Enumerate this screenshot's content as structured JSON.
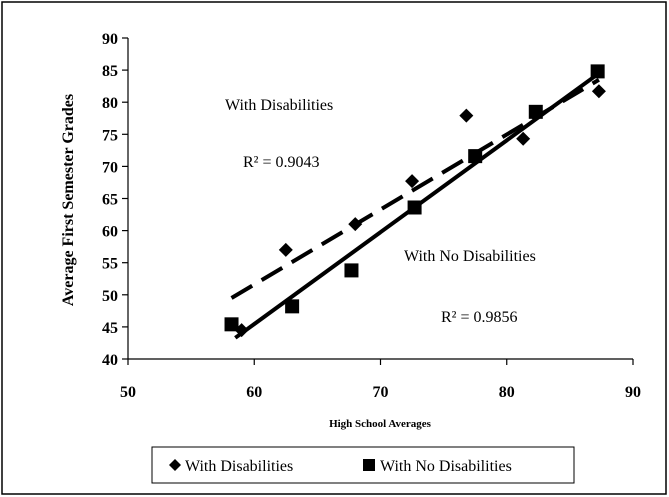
{
  "chart_data": {
    "type": "scatter",
    "xlabel": "High School Averages",
    "ylabel": "Average First Semester Grades",
    "xlim": [
      50,
      90
    ],
    "ylim": [
      40,
      90
    ],
    "x_ticks": [
      "50",
      "60",
      "70",
      "80",
      "90"
    ],
    "y_ticks": [
      "40",
      "45",
      "50",
      "55",
      "60",
      "65",
      "70",
      "75",
      "80",
      "85",
      "90"
    ],
    "grid": false,
    "legend_position": "bottom",
    "series": [
      {
        "name": "With Disabilities",
        "marker": "diamond",
        "color": "#000000",
        "points": [
          {
            "x": 59,
            "y": 44.5
          },
          {
            "x": 62.5,
            "y": 57
          },
          {
            "x": 68,
            "y": 61
          },
          {
            "x": 72.5,
            "y": 67.7
          },
          {
            "x": 76.8,
            "y": 77.9
          },
          {
            "x": 81.3,
            "y": 74.3
          },
          {
            "x": 87.3,
            "y": 81.7
          }
        ],
        "trendline": {
          "style": "dashed",
          "x": [
            58.2,
            87.3
          ],
          "y": [
            49.5,
            83.5
          ]
        },
        "annotation": {
          "label": "With Disabilities",
          "r2": "R² = 0.9043"
        }
      },
      {
        "name": "With No Disabilities",
        "marker": "square",
        "color": "#000000",
        "points": [
          {
            "x": 58.2,
            "y": 45.4
          },
          {
            "x": 63,
            "y": 48.2
          },
          {
            "x": 67.7,
            "y": 53.8
          },
          {
            "x": 72.7,
            "y": 63.6
          },
          {
            "x": 77.5,
            "y": 71.6
          },
          {
            "x": 82.3,
            "y": 78.5
          },
          {
            "x": 87.2,
            "y": 84.8
          }
        ],
        "trendline": {
          "style": "solid",
          "x": [
            58.5,
            87.3
          ],
          "y": [
            43.3,
            84.5
          ]
        },
        "annotation": {
          "label": "With No Disabilities",
          "r2": "R² = 0.9856"
        }
      }
    ]
  }
}
